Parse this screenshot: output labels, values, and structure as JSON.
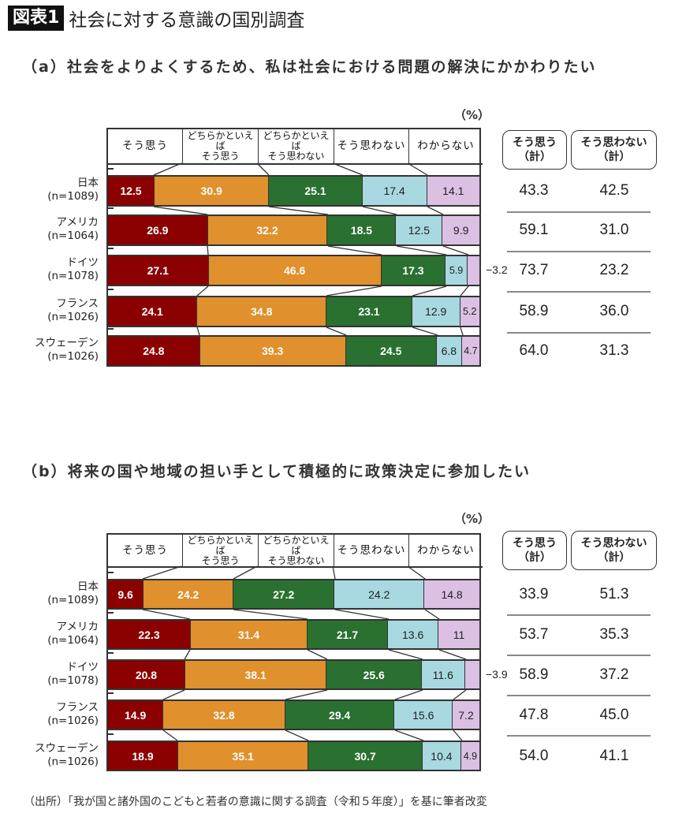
{
  "figure": {
    "badge": "図表1",
    "title": "社会に対する意識の国別調査",
    "footer": "（出所）「我が国と諸外国のこどもと若者の意識に関する調査（令和５年度）」を基に筆者改変"
  },
  "colors": {
    "strongly_agree": "#8b0000",
    "somewhat_agree": "#e0902c",
    "somewhat_disagree": "#2a7030",
    "disagree": "#a8d8e0",
    "dont_know": "#dcc0e4"
  },
  "legend": {
    "unit": "（%）",
    "categories": [
      {
        "line1": "そう思う",
        "line2": ""
      },
      {
        "line1": "どちらかといえば",
        "line2": "そう思う"
      },
      {
        "line1": "どちらかといえば",
        "line2": "そう思わない"
      },
      {
        "line1": "そう思わない",
        "line2": ""
      },
      {
        "line1": "わからない",
        "line2": ""
      }
    ],
    "summary_headers": [
      {
        "line1": "そう思う",
        "line2": "（計）"
      },
      {
        "line1": "そう思わない",
        "line2": "（計）"
      }
    ]
  },
  "chart_data": [
    {
      "type": "bar",
      "orientation": "horizontal-stacked-100",
      "title": "（a）社会をよりよくするため、私は社会における問題の解決にかかわりたい",
      "unit": "%",
      "categories": [
        "日本 (n=1089)",
        "アメリカ (n=1064)",
        "ドイツ (n=1078)",
        "フランス (n=1026)",
        "スウェーデン (n=1026)"
      ],
      "series": [
        {
          "name": "そう思う",
          "values": [
            12.5,
            26.9,
            27.1,
            24.1,
            24.8
          ]
        },
        {
          "name": "どちらかといえばそう思う",
          "values": [
            30.9,
            32.2,
            46.6,
            34.8,
            39.3
          ]
        },
        {
          "name": "どちらかといえばそう思わない",
          "values": [
            25.1,
            18.5,
            17.3,
            23.1,
            24.5
          ]
        },
        {
          "name": "そう思わない",
          "values": [
            17.4,
            12.5,
            5.9,
            12.9,
            6.8
          ]
        },
        {
          "name": "わからない",
          "values": [
            14.1,
            9.9,
            3.2,
            5.2,
            4.7
          ]
        }
      ],
      "summary": {
        "agree_total": [
          43.3,
          59.1,
          73.7,
          58.9,
          64.0
        ],
        "disagree_total": [
          42.5,
          31.0,
          23.2,
          36.0,
          31.3
        ]
      }
    },
    {
      "type": "bar",
      "orientation": "horizontal-stacked-100",
      "title": "（b）将来の国や地域の担い手として積極的に政策決定に参加したい",
      "unit": "%",
      "categories": [
        "日本 (n=1089)",
        "アメリカ (n=1064)",
        "ドイツ (n=1078)",
        "フランス (n=1026)",
        "スウェーデン (n=1026)"
      ],
      "series": [
        {
          "name": "そう思う",
          "values": [
            9.6,
            22.3,
            20.8,
            14.9,
            18.9
          ]
        },
        {
          "name": "どちらかといえばそう思う",
          "values": [
            24.2,
            31.4,
            38.1,
            32.8,
            35.1
          ]
        },
        {
          "name": "どちらかといえばそう思わない",
          "values": [
            27.2,
            21.7,
            25.6,
            29.4,
            30.7
          ]
        },
        {
          "name": "そう思わない",
          "values": [
            24.2,
            13.6,
            11.6,
            15.6,
            10.4
          ]
        },
        {
          "name": "わからない",
          "values": [
            14.8,
            11,
            3.9,
            7.2,
            4.9
          ]
        }
      ],
      "summary": {
        "agree_total": [
          33.9,
          53.7,
          58.9,
          47.8,
          54.0
        ],
        "disagree_total": [
          51.3,
          35.3,
          37.2,
          45.0,
          41.1
        ]
      }
    }
  ],
  "panels": [
    {
      "title": "（a）社会をよりよくするため、私は社会における問題の解決にかかわりたい",
      "rows": [
        {
          "country": "日本",
          "n": "(n=1089)",
          "values": [
            "12.5",
            "30.9",
            "25.1",
            "17.4",
            "14.1"
          ],
          "outside": "",
          "agree": "43.3",
          "disagree": "42.5"
        },
        {
          "country": "アメリカ",
          "n": "(n=1064)",
          "values": [
            "26.9",
            "32.2",
            "18.5",
            "12.5",
            "9.9"
          ],
          "outside": "",
          "agree": "59.1",
          "disagree": "31.0"
        },
        {
          "country": "ドイツ",
          "n": "(n=1078)",
          "values": [
            "27.1",
            "46.6",
            "17.3",
            "5.9",
            ""
          ],
          "outside": "3.2",
          "agree": "73.7",
          "disagree": "23.2"
        },
        {
          "country": "フランス",
          "n": "(n=1026)",
          "values": [
            "24.1",
            "34.8",
            "23.1",
            "12.9",
            "5.2"
          ],
          "outside": "",
          "agree": "58.9",
          "disagree": "36.0"
        },
        {
          "country": "スウェーデン",
          "n": "(n=1026)",
          "values": [
            "24.8",
            "39.3",
            "24.5",
            "6.8",
            "4.7"
          ],
          "outside": "",
          "agree": "64.0",
          "disagree": "31.3"
        }
      ]
    },
    {
      "title": "（b）将来の国や地域の担い手として積極的に政策決定に参加したい",
      "rows": [
        {
          "country": "日本",
          "n": "(n=1089)",
          "values": [
            "9.6",
            "24.2",
            "27.2",
            "24.2",
            "14.8"
          ],
          "outside": "",
          "agree": "33.9",
          "disagree": "51.3"
        },
        {
          "country": "アメリカ",
          "n": "(n=1064)",
          "values": [
            "22.3",
            "31.4",
            "21.7",
            "13.6",
            "11"
          ],
          "outside": "",
          "agree": "53.7",
          "disagree": "35.3"
        },
        {
          "country": "ドイツ",
          "n": "(n=1078)",
          "values": [
            "20.8",
            "38.1",
            "25.6",
            "11.6",
            ""
          ],
          "outside": "3.9",
          "agree": "58.9",
          "disagree": "37.2"
        },
        {
          "country": "フランス",
          "n": "(n=1026)",
          "values": [
            "14.9",
            "32.8",
            "29.4",
            "15.6",
            "7.2"
          ],
          "outside": "",
          "agree": "47.8",
          "disagree": "45.0"
        },
        {
          "country": "スウェーデン",
          "n": "(n=1026)",
          "values": [
            "18.9",
            "35.1",
            "30.7",
            "10.4",
            "4.9"
          ],
          "outside": "",
          "agree": "54.0",
          "disagree": "41.1"
        }
      ]
    }
  ]
}
